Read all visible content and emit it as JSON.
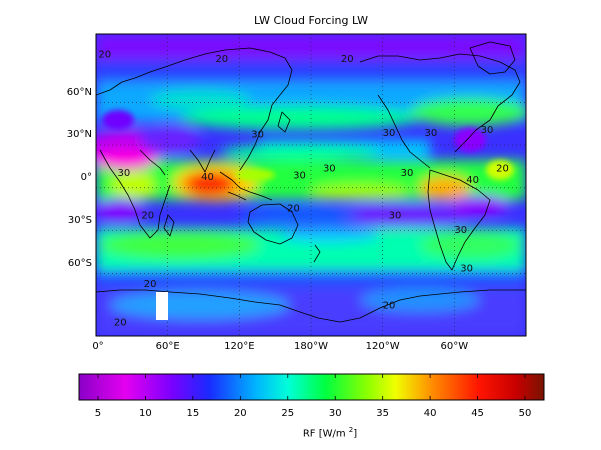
{
  "title": "LW Cloud Forcing LW",
  "lat_labels": [
    {
      "text": "60°N",
      "lat": 60
    },
    {
      "text": "30°N",
      "lat": 30
    },
    {
      "text": "0°",
      "lat": 0
    },
    {
      "text": "30°S",
      "lat": -30
    },
    {
      "text": "60°S",
      "lat": -60
    }
  ],
  "lon_labels": [
    {
      "text": "0°",
      "lon": 0
    },
    {
      "text": "60°E",
      "lon": 60
    },
    {
      "text": "120°E",
      "lon": 120
    },
    {
      "text": "180°W",
      "lon": 180
    },
    {
      "text": "120°W",
      "lon": 240
    },
    {
      "text": "60°W",
      "lon": 300
    }
  ],
  "colorbar": {
    "ticks": [
      "5",
      "10",
      "15",
      "20",
      "25",
      "30",
      "35",
      "40",
      "45",
      "50"
    ],
    "min": 3,
    "max": 52,
    "label": "RF [W/m ",
    "label_sup": "2",
    "label_end": "]"
  },
  "contour_labels": [
    {
      "text": "20",
      "lon": 2,
      "lat": 88
    },
    {
      "text": "20",
      "lon": 100,
      "lat": 85
    },
    {
      "text": "20",
      "lon": 205,
      "lat": 85
    },
    {
      "text": "30",
      "lon": 130,
      "lat": 32
    },
    {
      "text": "30",
      "lon": 240,
      "lat": 33
    },
    {
      "text": "30",
      "lon": 275,
      "lat": 33
    },
    {
      "text": "30",
      "lon": 322,
      "lat": 35
    },
    {
      "text": "30",
      "lon": 18,
      "lat": 5
    },
    {
      "text": "40",
      "lon": 88,
      "lat": 2
    },
    {
      "text": "30",
      "lon": 165,
      "lat": 3
    },
    {
      "text": "30",
      "lon": 190,
      "lat": 8
    },
    {
      "text": "30",
      "lon": 255,
      "lat": 5
    },
    {
      "text": "40",
      "lon": 310,
      "lat": 0
    },
    {
      "text": "20",
      "lon": 335,
      "lat": 8
    },
    {
      "text": "20",
      "lon": 160,
      "lat": -20
    },
    {
      "text": "30",
      "lon": 245,
      "lat": -25
    },
    {
      "text": "30",
      "lon": 300,
      "lat": -35
    },
    {
      "text": "20",
      "lon": 38,
      "lat": -25
    },
    {
      "text": "30",
      "lon": 305,
      "lat": -62
    },
    {
      "text": "20",
      "lon": 40,
      "lat": -73
    },
    {
      "text": "20",
      "lon": 240,
      "lat": -88
    },
    {
      "text": "20",
      "lon": 15,
      "lat": -100
    }
  ]
}
